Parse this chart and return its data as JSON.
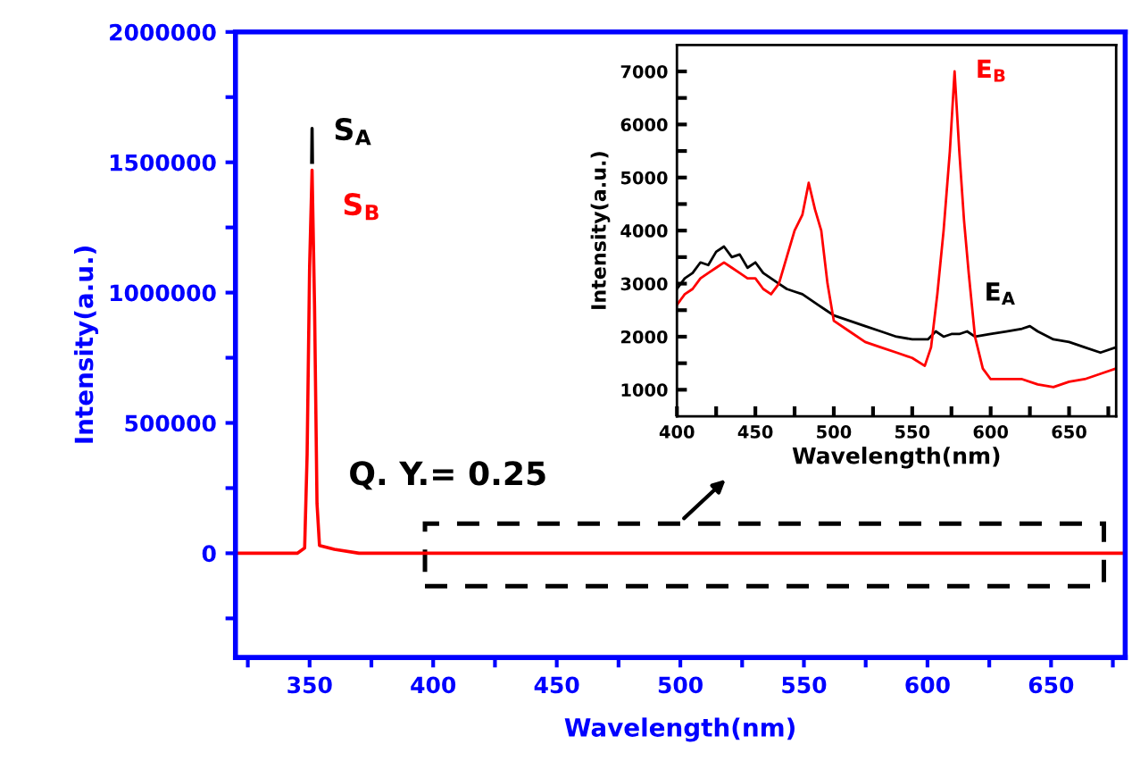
{
  "chart_data": [
    {
      "type": "line",
      "xlabel": "Wavelength(nm)",
      "ylabel": "Intensity(a.u.)",
      "xlim": [
        320,
        680
      ],
      "ylim": [
        -400000,
        2000000
      ],
      "xticks": [
        {
          "value": 325,
          "label": null
        },
        350,
        {
          "value": 375,
          "label": null
        },
        400,
        {
          "value": 425,
          "label": null
        },
        450,
        {
          "value": 475,
          "label": null
        },
        500,
        {
          "value": 525,
          "label": null
        },
        550,
        {
          "value": 575,
          "label": null
        },
        600,
        {
          "value": 625,
          "label": null
        },
        650,
        {
          "value": 675,
          "label": null
        }
      ],
      "yticks": [
        {
          "value": -250000,
          "label": null
        },
        0,
        {
          "value": 250000,
          "label": null
        },
        500000,
        {
          "value": 750000,
          "label": null
        },
        1000000,
        {
          "value": 1250000,
          "label": null
        },
        1500000,
        {
          "value": 1750000,
          "label": null
        },
        2000000
      ],
      "grid": false,
      "legend": false,
      "annotations": [
        "Q. Y.= 0.25"
      ],
      "series": [
        {
          "name": "S$_{A}$",
          "color": "#000000",
          "x": [
            350.85,
            351,
            351.15
          ],
          "values": [
            1500000,
            1630000,
            1500000
          ]
        },
        {
          "name": "S$_{B}$",
          "color": "#ff0000",
          "x": [
            320,
            345,
            348,
            349,
            350,
            351,
            352,
            353,
            354,
            360,
            370,
            680
          ],
          "values": [
            0,
            0,
            20000,
            380000,
            1100000,
            1470000,
            950000,
            190000,
            30000,
            15000,
            0,
            0
          ]
        }
      ]
    },
    {
      "type": "line",
      "xlabel": "Wavelength(nm)",
      "ylabel": "Intensity(a.u.)",
      "xlim": [
        400,
        680
      ],
      "ylim": [
        500,
        7500
      ],
      "xticks": [
        400,
        {
          "value": 425,
          "label": null
        },
        450,
        {
          "value": 475,
          "label": null
        },
        500,
        {
          "value": 525,
          "label": null
        },
        550,
        {
          "value": 575,
          "label": null
        },
        600,
        {
          "value": 625,
          "label": null
        },
        650,
        {
          "value": 675,
          "label": null
        }
      ],
      "yticks": [
        1000,
        {
          "value": 1500,
          "label": null
        },
        2000,
        {
          "value": 2500,
          "label": null
        },
        3000,
        {
          "value": 3500,
          "label": null
        },
        4000,
        {
          "value": 4500,
          "label": null
        },
        5000,
        {
          "value": 5500,
          "label": null
        },
        6000,
        {
          "value": 6500,
          "label": null
        },
        7000
      ],
      "grid": false,
      "legend": false,
      "series": [
        {
          "name": "E$_{A}$",
          "color": "#000000",
          "x": [
            400,
            405,
            410,
            415,
            420,
            425,
            430,
            435,
            440,
            445,
            450,
            455,
            460,
            465,
            470,
            475,
            480,
            485,
            490,
            495,
            500,
            510,
            520,
            530,
            540,
            550,
            560,
            565,
            570,
            575,
            580,
            585,
            590,
            600,
            610,
            620,
            625,
            630,
            640,
            650,
            660,
            670,
            680
          ],
          "values": [
            2900,
            3100,
            3200,
            3400,
            3350,
            3600,
            3700,
            3500,
            3550,
            3300,
            3400,
            3200,
            3100,
            3000,
            2900,
            2850,
            2800,
            2700,
            2600,
            2500,
            2400,
            2300,
            2200,
            2100,
            2000,
            1950,
            1950,
            2100,
            2000,
            2050,
            2050,
            2100,
            2000,
            2050,
            2100,
            2150,
            2200,
            2100,
            1950,
            1900,
            1800,
            1700,
            1800
          ]
        },
        {
          "name": "E$_{B}$",
          "color": "#ff0000",
          "x": [
            400,
            405,
            410,
            415,
            420,
            425,
            430,
            435,
            440,
            445,
            450,
            455,
            460,
            465,
            470,
            475,
            480,
            484,
            488,
            492,
            496,
            500,
            510,
            520,
            530,
            540,
            550,
            558,
            562,
            566,
            570,
            574,
            577,
            580,
            583,
            586,
            590,
            595,
            600,
            610,
            620,
            630,
            640,
            650,
            660,
            670,
            680
          ],
          "values": [
            2600,
            2800,
            2900,
            3100,
            3200,
            3300,
            3400,
            3300,
            3200,
            3100,
            3100,
            2900,
            2800,
            3000,
            3500,
            4000,
            4300,
            4900,
            4400,
            4000,
            3000,
            2300,
            2100,
            1900,
            1800,
            1700,
            1600,
            1450,
            1800,
            2800,
            4000,
            5500,
            7000,
            5500,
            4200,
            3200,
            2000,
            1400,
            1200,
            1200,
            1200,
            1100,
            1050,
            1150,
            1200,
            1300,
            1400
          ]
        }
      ]
    }
  ]
}
